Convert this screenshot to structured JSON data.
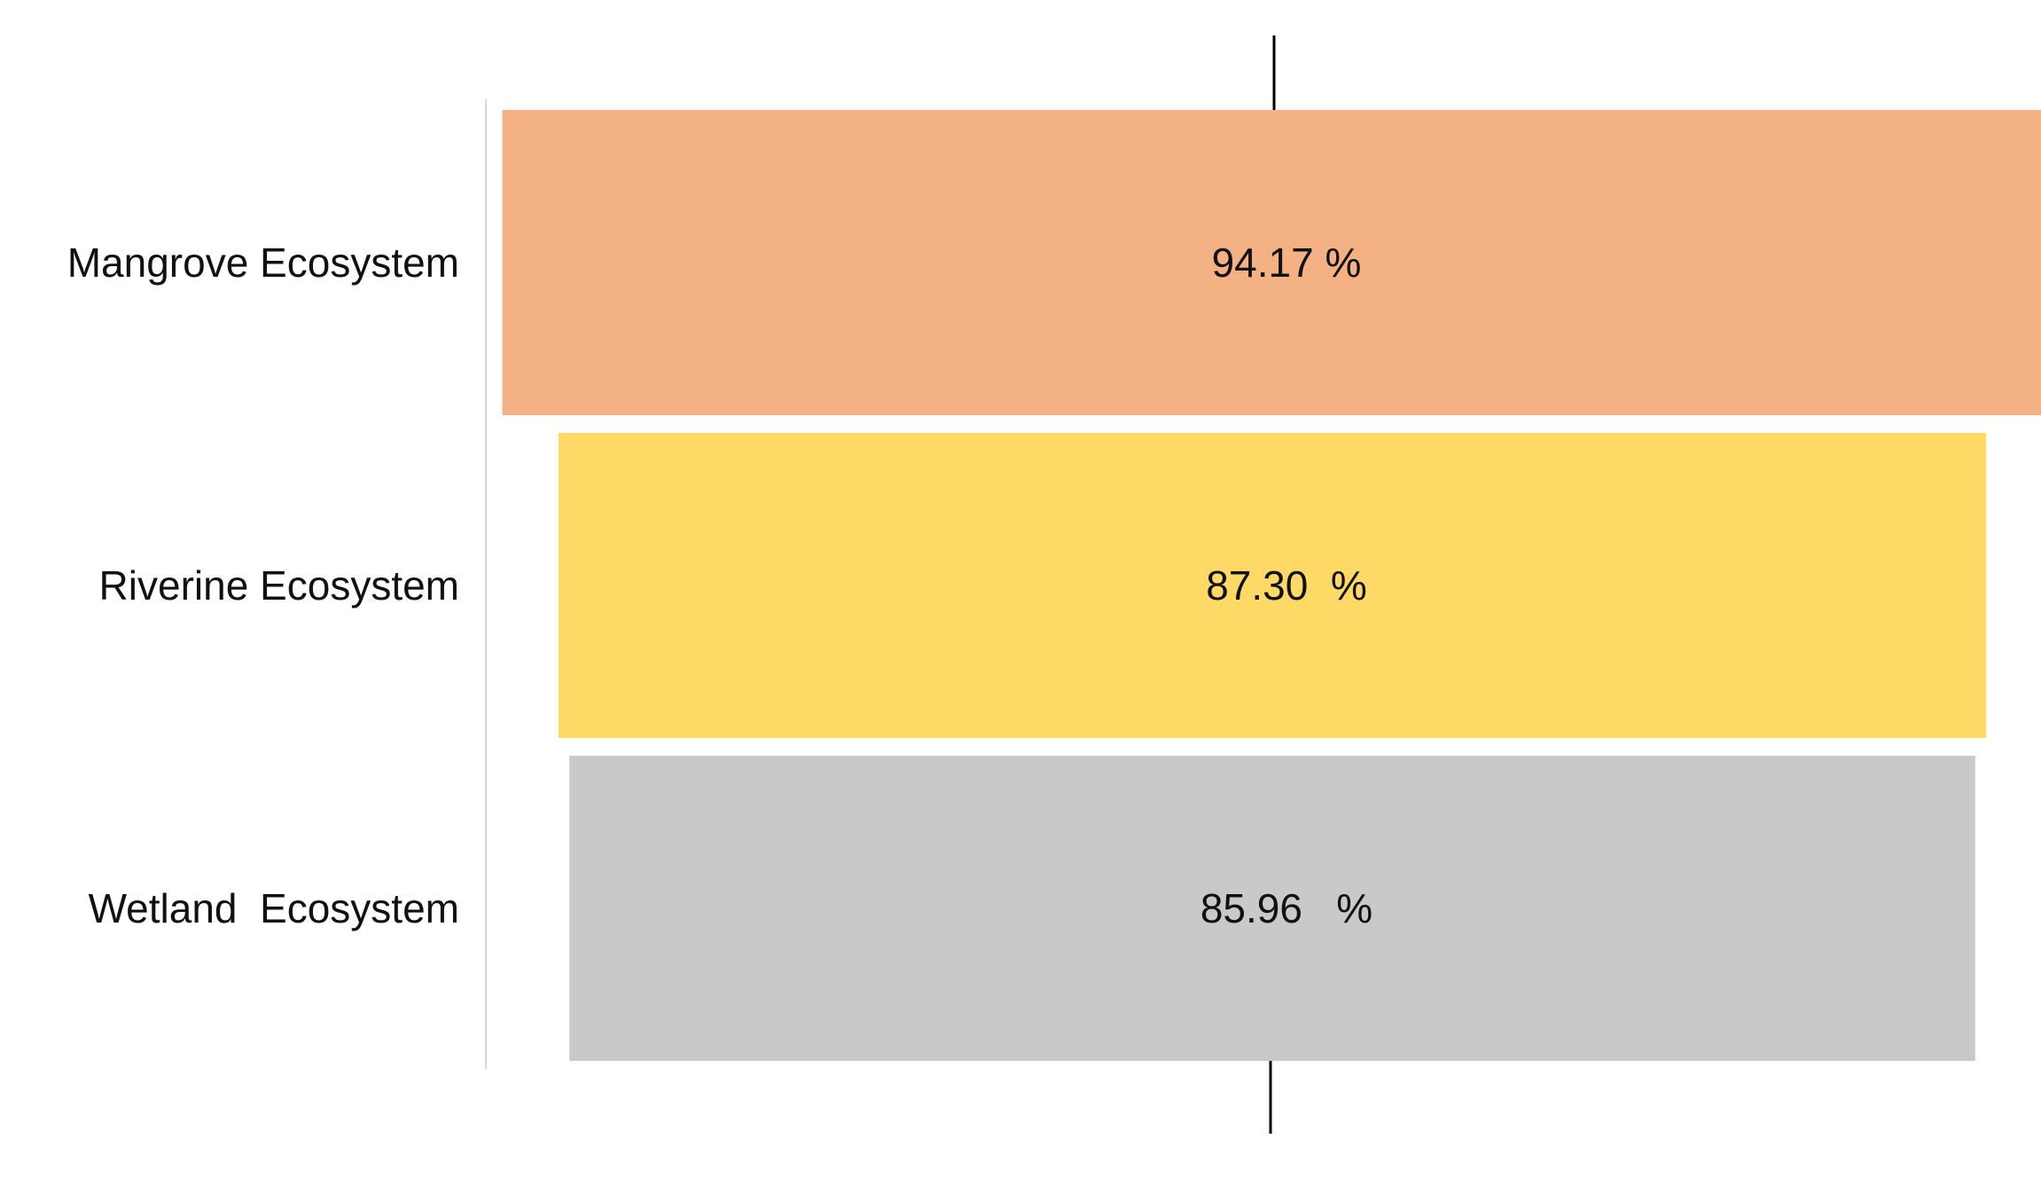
{
  "chart_data": {
    "type": "bar",
    "orientation": "horizontal-funnel",
    "categories": [
      "Mangrove Ecosystem",
      "Riverine Ecosystem",
      "Wetland  Ecosystem"
    ],
    "values": [
      94.17,
      87.3,
      85.96
    ],
    "data_labels": [
      "94.17 %",
      "87.30  %",
      "85.96   %"
    ],
    "colors": [
      "#F4B183",
      "#FFD966",
      "#C9C9C9"
    ],
    "title": "",
    "xlabel": "",
    "ylabel": "",
    "grid": false,
    "legend": "none"
  }
}
